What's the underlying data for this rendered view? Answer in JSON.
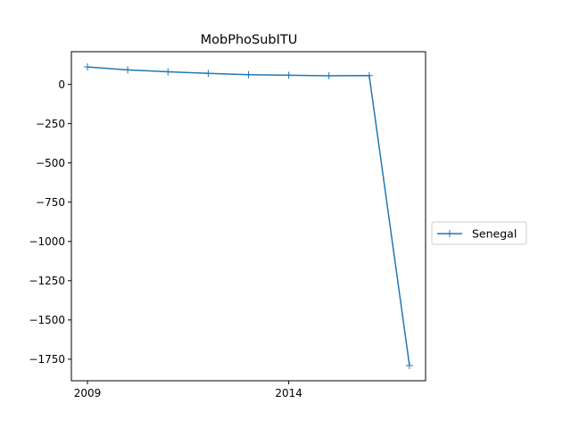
{
  "chart_data": {
    "type": "line",
    "title": "MobPhoSubITU",
    "xlabel": "",
    "ylabel": "",
    "x": [
      2009,
      2010,
      2011,
      2012,
      2013,
      2014,
      2015,
      2016,
      2017
    ],
    "series": [
      {
        "name": "Senegal",
        "color": "#1f77b4",
        "marker": "plus",
        "values": [
          111,
          92,
          80,
          70,
          62,
          58,
          55,
          56,
          -1790
        ]
      }
    ],
    "xticks": [
      2009,
      2014
    ],
    "xtick_labels": [
      "2009",
      "2014"
    ],
    "yticks": [
      0,
      -250,
      -500,
      -750,
      -1000,
      -1250,
      -1500,
      -1750
    ],
    "ytick_labels": [
      "0",
      "−250",
      "−500",
      "−750",
      "−1000",
      "−1250",
      "−1500",
      "−1750"
    ],
    "xlim": [
      2008.6,
      2017.4
    ],
    "ylim": [
      -1887,
      208
    ],
    "grid": false,
    "legend_position": "right"
  }
}
